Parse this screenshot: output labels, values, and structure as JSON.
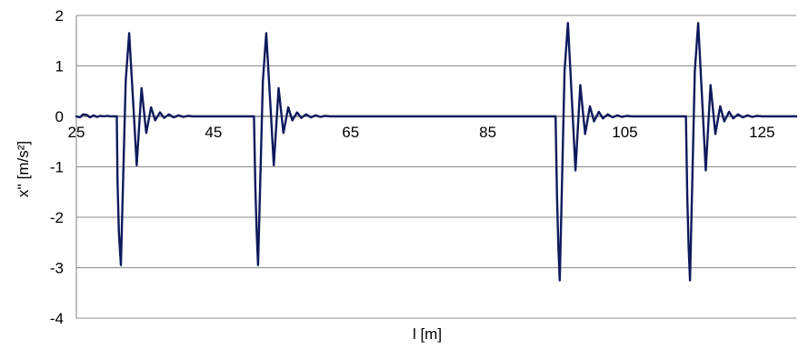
{
  "chart_data": {
    "type": "line",
    "xlabel": "l [m]",
    "ylabel": "x'' [m/s²]",
    "xlim": [
      25,
      130
    ],
    "ylim": [
      -4,
      2
    ],
    "x_ticks": [
      25,
      45,
      65,
      85,
      105,
      125
    ],
    "y_ticks": [
      2,
      1,
      0,
      -1,
      -2,
      -3,
      -4
    ],
    "x_tick_labels": [
      "25",
      "45",
      "65",
      "85",
      "105",
      "125"
    ],
    "y_tick_labels": [
      "2",
      "1",
      "0",
      "-1",
      "-2",
      "-3",
      "-4"
    ],
    "grid": "horizontal",
    "legend": "none",
    "colors": {
      "line": "#0d1a5c",
      "grid": "#8c8c8c",
      "axis": "#808080"
    },
    "series": [
      {
        "points": [
          [
            25,
            0
          ],
          [
            25.5,
            -0.02
          ],
          [
            26,
            0.04
          ],
          [
            26.5,
            0.03
          ],
          [
            27,
            -0.02
          ],
          [
            27.5,
            0.02
          ],
          [
            28,
            -0.01
          ],
          [
            28.5,
            0.01
          ],
          [
            29,
            0
          ],
          [
            29.5,
            0.01
          ],
          [
            30,
            0
          ],
          [
            30.5,
            0
          ],
          [
            30.9,
            0
          ],
          [
            31,
            -1.3
          ],
          [
            31.2,
            -2.3
          ],
          [
            31.5,
            -2.95
          ],
          [
            32.2,
            0.7
          ],
          [
            32.7,
            1.65
          ],
          [
            33.4,
            0
          ],
          [
            33.8,
            -0.97
          ],
          [
            34.5,
            0.56
          ],
          [
            35.2,
            -0.33
          ],
          [
            35.9,
            0.18
          ],
          [
            36.5,
            -0.08
          ],
          [
            37.2,
            0.08
          ],
          [
            37.8,
            -0.03
          ],
          [
            38.5,
            0.04
          ],
          [
            39.2,
            -0.02
          ],
          [
            39.9,
            0.02
          ],
          [
            40.6,
            -0.01
          ],
          [
            41.3,
            0.01
          ],
          [
            42,
            0
          ],
          [
            43,
            0
          ],
          [
            44,
            0
          ],
          [
            45,
            0
          ],
          [
            47,
            0
          ],
          [
            49,
            0
          ],
          [
            50.5,
            0
          ],
          [
            50.9,
            0
          ],
          [
            51.1,
            -1.4
          ],
          [
            51.3,
            -2.3
          ],
          [
            51.5,
            -2.95
          ],
          [
            52.2,
            0.7
          ],
          [
            52.7,
            1.65
          ],
          [
            53.4,
            0
          ],
          [
            53.8,
            -0.97
          ],
          [
            54.5,
            0.56
          ],
          [
            55.2,
            -0.33
          ],
          [
            55.9,
            0.18
          ],
          [
            56.5,
            -0.08
          ],
          [
            57.2,
            0.08
          ],
          [
            57.8,
            -0.03
          ],
          [
            58.5,
            0.04
          ],
          [
            59.2,
            -0.02
          ],
          [
            59.9,
            0.02
          ],
          [
            60.6,
            -0.01
          ],
          [
            61.3,
            0.01
          ],
          [
            62,
            0
          ],
          [
            65,
            0
          ],
          [
            70,
            0
          ],
          [
            75,
            0
          ],
          [
            80,
            0
          ],
          [
            85,
            0
          ],
          [
            90,
            0
          ],
          [
            94.5,
            0
          ],
          [
            94.9,
            0
          ],
          [
            95.1,
            -1.6
          ],
          [
            95.3,
            -2.6
          ],
          [
            95.5,
            -3.25
          ],
          [
            96.2,
            0.9
          ],
          [
            96.7,
            1.85
          ],
          [
            97.4,
            0
          ],
          [
            97.8,
            -1.07
          ],
          [
            98.5,
            0.62
          ],
          [
            99.2,
            -0.35
          ],
          [
            99.9,
            0.2
          ],
          [
            100.5,
            -0.1
          ],
          [
            101.2,
            0.09
          ],
          [
            101.8,
            -0.04
          ],
          [
            102.5,
            0.04
          ],
          [
            103.2,
            -0.02
          ],
          [
            103.9,
            0.02
          ],
          [
            104.6,
            -0.01
          ],
          [
            105.3,
            0.01
          ],
          [
            106,
            0
          ],
          [
            108,
            0
          ],
          [
            110,
            0
          ],
          [
            113.5,
            0
          ],
          [
            113.9,
            0
          ],
          [
            114.1,
            -1.6
          ],
          [
            114.3,
            -2.6
          ],
          [
            114.5,
            -3.25
          ],
          [
            115.2,
            0.9
          ],
          [
            115.7,
            1.85
          ],
          [
            116.4,
            0
          ],
          [
            116.8,
            -1.07
          ],
          [
            117.5,
            0.62
          ],
          [
            118.2,
            -0.35
          ],
          [
            118.9,
            0.2
          ],
          [
            119.5,
            -0.1
          ],
          [
            120.2,
            0.09
          ],
          [
            120.8,
            -0.04
          ],
          [
            121.5,
            0.04
          ],
          [
            122.2,
            -0.02
          ],
          [
            122.9,
            0.02
          ],
          [
            123.6,
            -0.01
          ],
          [
            124.3,
            0.01
          ],
          [
            125,
            0
          ],
          [
            127,
            0
          ],
          [
            130,
            0
          ]
        ]
      }
    ]
  }
}
